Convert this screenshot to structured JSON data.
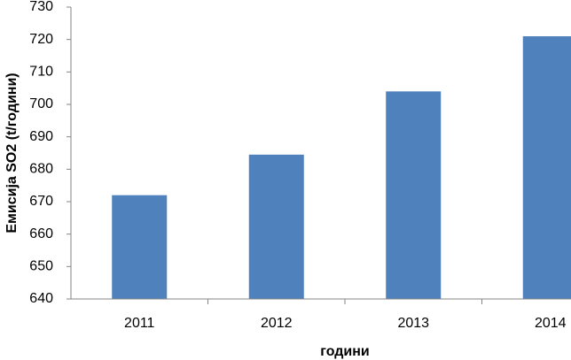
{
  "chart_data": {
    "type": "bar",
    "x_label": "години",
    "y_label": "Емисија SO2 (t/години)",
    "categories": [
      "2011",
      "2012",
      "2013",
      "2014"
    ],
    "values": [
      672,
      684.5,
      704,
      721
    ],
    "color": "#4f81bd",
    "ylim": [
      640,
      730
    ],
    "yticks": [
      640,
      650,
      660,
      670,
      680,
      690,
      700,
      710,
      720,
      730
    ],
    "grid": false
  }
}
